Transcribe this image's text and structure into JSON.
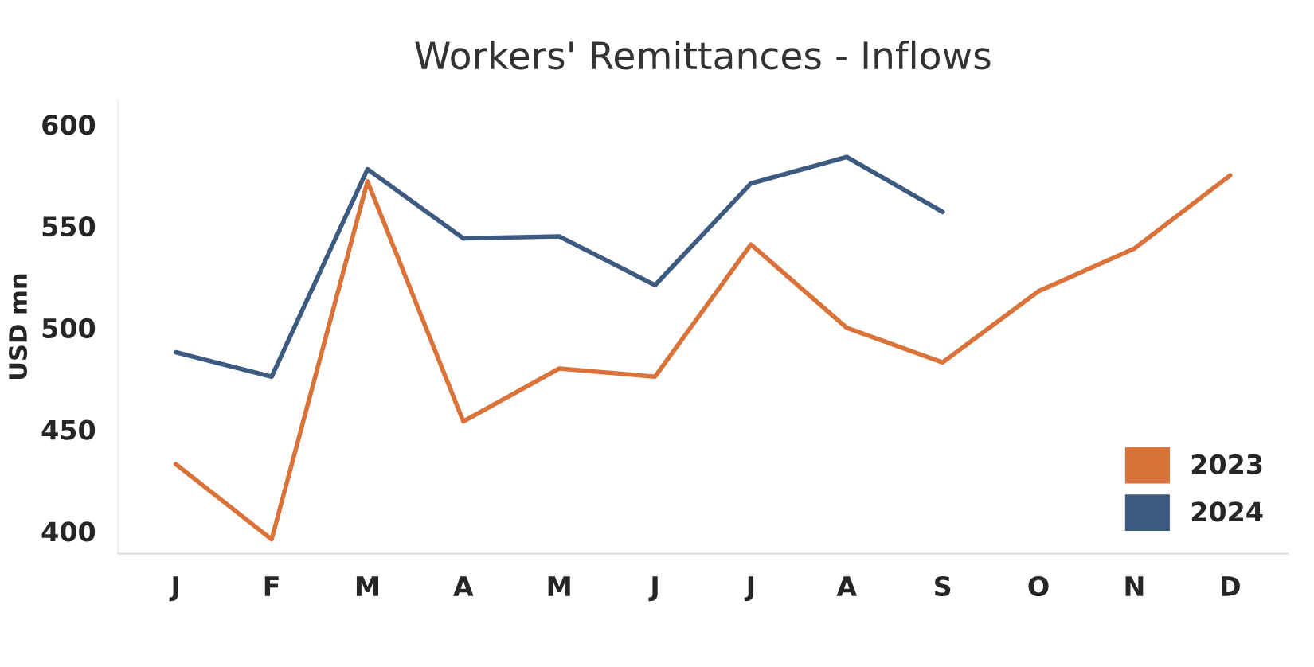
{
  "chart_data": {
    "type": "line",
    "title": "Workers' Remittances - Inflows",
    "ylabel": "USD mn",
    "categories": [
      "J",
      "F",
      "M",
      "A",
      "M",
      "J",
      "J",
      "A",
      "S",
      "O",
      "N",
      "D"
    ],
    "series": [
      {
        "name": "2023",
        "color": "#d9733a",
        "values": [
          433,
          396,
          572,
          454,
          480,
          476,
          541,
          500,
          483,
          518,
          539,
          575
        ]
      },
      {
        "name": "2024",
        "color": "#3d5a80",
        "values": [
          488,
          476,
          578,
          544,
          545,
          521,
          571,
          584,
          557,
          null,
          null,
          null
        ]
      }
    ],
    "ylim": [
      389,
      612
    ],
    "yticks": [
      400,
      450,
      500,
      550,
      600
    ],
    "grid": false,
    "legend": "bottom right",
    "marker": "none",
    "line_style": "solid"
  }
}
